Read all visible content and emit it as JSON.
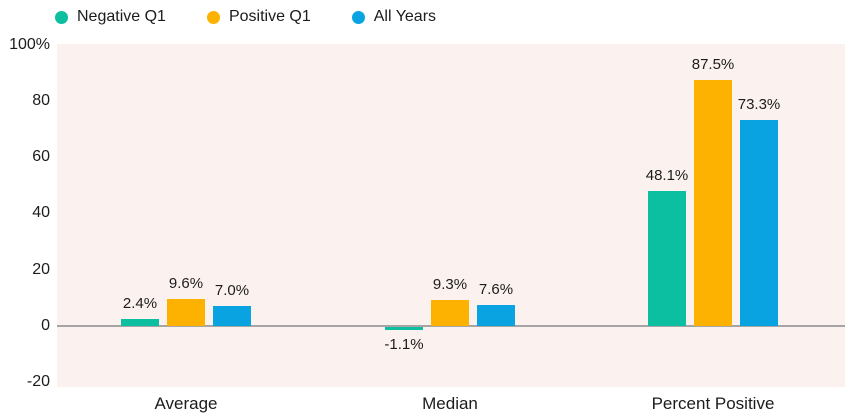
{
  "chart_data": {
    "type": "bar",
    "title": "",
    "xlabel": "",
    "ylabel": "",
    "categories": [
      "Average",
      "Median",
      "Percent Positive"
    ],
    "series": [
      {
        "name": "Negative Q1",
        "color": "#0CBFA0",
        "values": [
          2.4,
          -1.1,
          48.1
        ],
        "data_labels": [
          "2.4%",
          "-1.1%",
          "48.1%"
        ]
      },
      {
        "name": "Positive Q1",
        "color": "#FDB202",
        "values": [
          9.6,
          9.3,
          87.5
        ],
        "data_labels": [
          "9.6%",
          "9.3%",
          "87.5%"
        ]
      },
      {
        "name": "All Years",
        "color": "#0AA3E1",
        "values": [
          7.0,
          7.6,
          73.3
        ],
        "data_labels": [
          "7.0%",
          "7.6%",
          "73.3%"
        ]
      }
    ],
    "y_ticks": [
      {
        "value": 100,
        "label": "100%"
      },
      {
        "value": 80,
        "label": "80"
      },
      {
        "value": 60,
        "label": "60"
      },
      {
        "value": 40,
        "label": "40"
      },
      {
        "value": 20,
        "label": "20"
      },
      {
        "value": 0,
        "label": "0"
      },
      {
        "value": -20,
        "label": "-20"
      }
    ],
    "ylim": [
      -21,
      100
    ],
    "grid": false,
    "legend_position": "top-left",
    "colors": {
      "plot_background": "#FBF2EF",
      "page_background": "#FFFFFF",
      "axis_line": "#A5A5A5",
      "text": "#1C1C1C"
    }
  }
}
